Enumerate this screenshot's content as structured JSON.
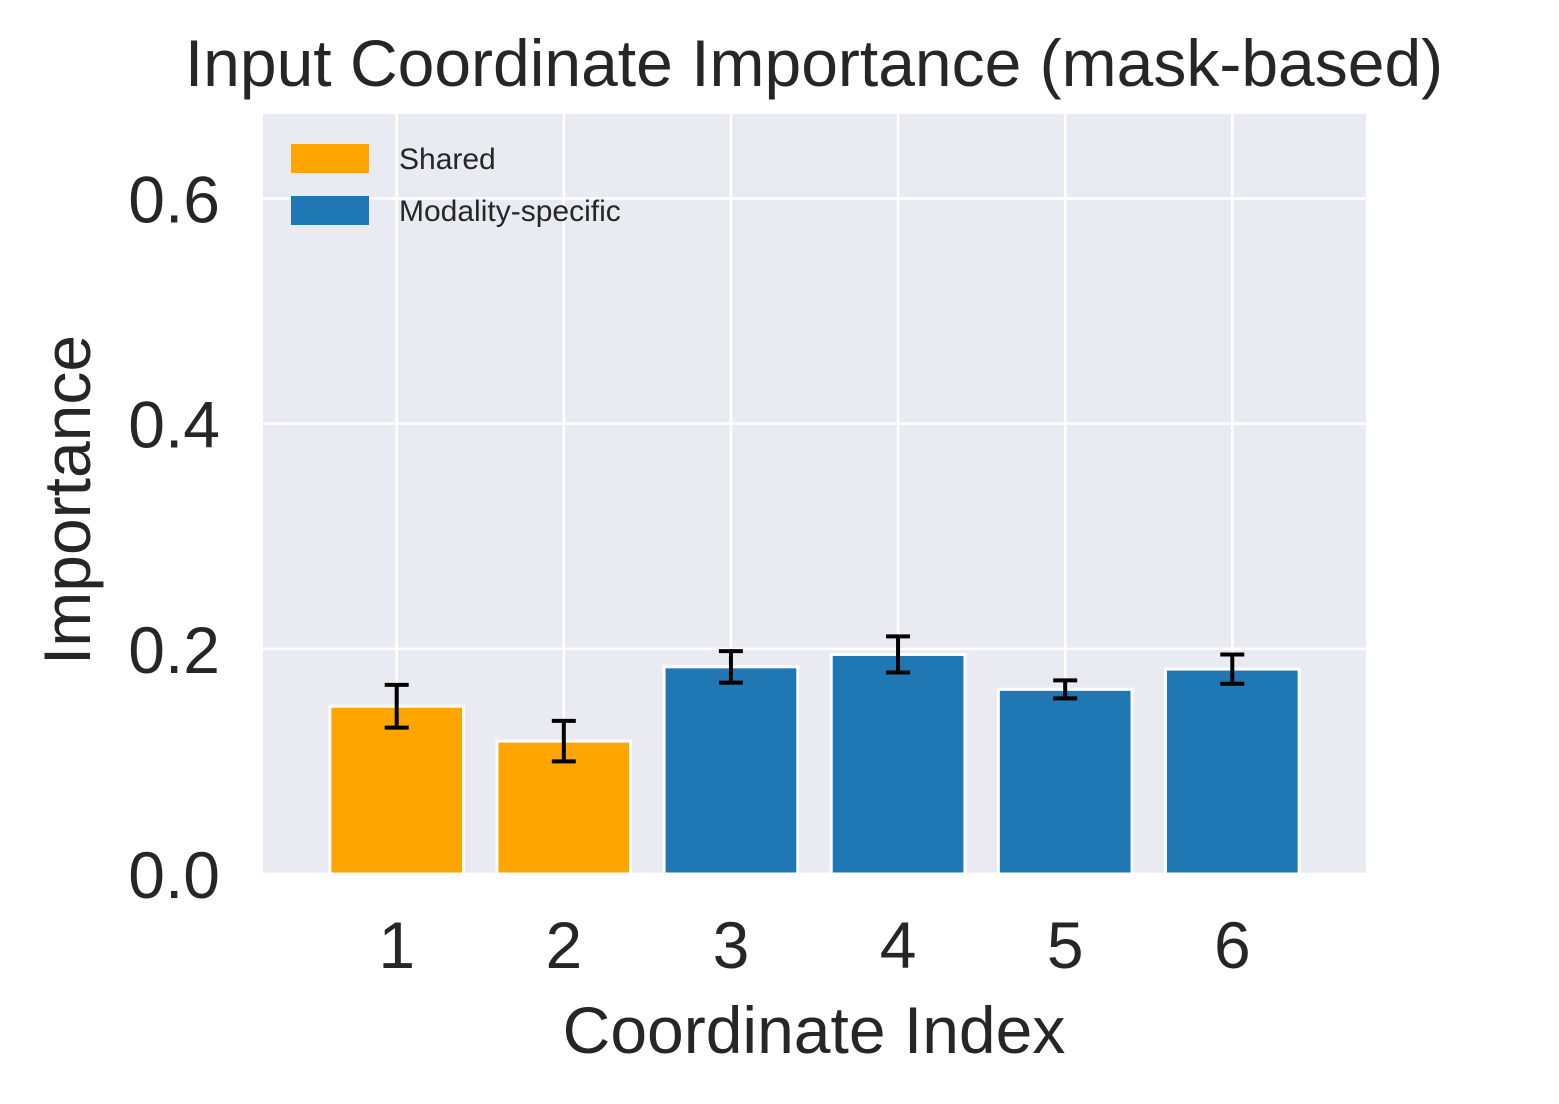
{
  "chart_data": {
    "type": "bar",
    "title": "Input Coordinate Importance (mask-based)",
    "xlabel": "Coordinate Index",
    "ylabel": "Importance",
    "categories": [
      "1",
      "2",
      "3",
      "4",
      "5",
      "6"
    ],
    "values": [
      0.149,
      0.118,
      0.184,
      0.195,
      0.164,
      0.182
    ],
    "errors": [
      0.019,
      0.018,
      0.014,
      0.016,
      0.008,
      0.013
    ],
    "bar_groups": [
      "Shared",
      "Shared",
      "Modality-specific",
      "Modality-specific",
      "Modality-specific",
      "Modality-specific"
    ],
    "ylim": [
      0,
      0.675
    ],
    "yticks": [
      0.0,
      0.2,
      0.4,
      0.6
    ],
    "ytick_labels": [
      "0.0",
      "0.2",
      "0.4",
      "0.6"
    ],
    "grid": true,
    "legend": {
      "position": "top-left",
      "entries": [
        {
          "label": "Shared",
          "color": "#FFA500"
        },
        {
          "label": "Modality-specific",
          "color": "#1F77B4"
        }
      ]
    },
    "colors": {
      "plot_background": "#EAEAF2",
      "grid": "#FFFFFF",
      "error_bar": "#000000",
      "text": "#262626"
    }
  }
}
